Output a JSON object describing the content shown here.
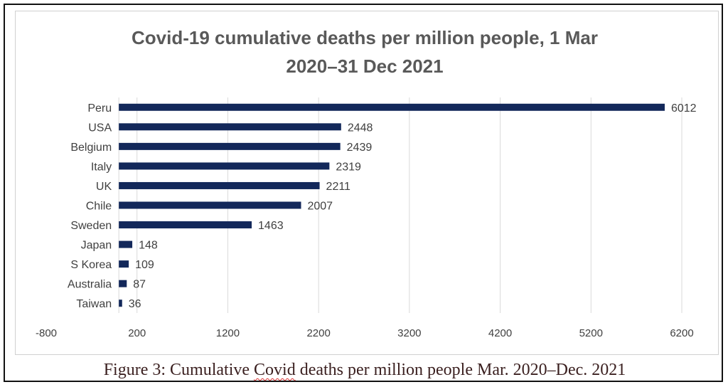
{
  "chart_data": {
    "type": "bar",
    "orientation": "horizontal",
    "title_line1": "Covid-19 cumulative deaths per million people, 1 Mar",
    "title_line2": "2020–31 Dec 2021",
    "categories": [
      "Peru",
      "USA",
      "Belgium",
      "Italy",
      "UK",
      "Chile",
      "Sweden",
      "Japan",
      "S Korea",
      "Australia",
      "Taiwan"
    ],
    "values": [
      6012,
      2448,
      2439,
      2319,
      2211,
      2007,
      1463,
      148,
      109,
      87,
      36
    ],
    "xlim": [
      -800,
      6200
    ],
    "xticks": [
      -800,
      200,
      1200,
      2200,
      3200,
      4200,
      5200,
      6200
    ],
    "grid": "vertical",
    "bar_color": "#13285a",
    "xlabel": "",
    "ylabel": ""
  },
  "figure": {
    "caption_before": "Figure 3: Cumulative ",
    "caption_highlight": "Covid",
    "caption_after": " deaths per million people Mar. 2020–Dec. 2021"
  },
  "colors": {
    "title": "#595959",
    "grid": "#d9d9d9",
    "label": "#404040"
  }
}
